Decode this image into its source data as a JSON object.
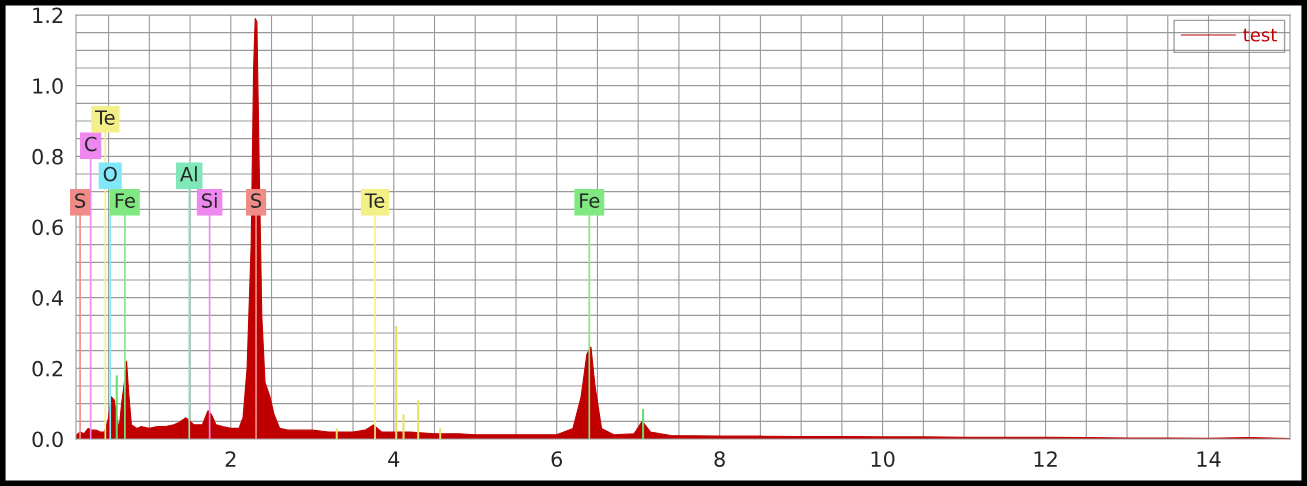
{
  "chart_data": {
    "type": "area",
    "series": [
      {
        "name": "test",
        "color": "#c00000",
        "x": [
          0.1,
          0.15,
          0.2,
          0.25,
          0.3,
          0.35,
          0.4,
          0.45,
          0.5,
          0.53,
          0.57,
          0.6,
          0.63,
          0.66,
          0.7,
          0.72,
          0.75,
          0.78,
          0.85,
          0.9,
          1.0,
          1.1,
          1.2,
          1.3,
          1.35,
          1.45,
          1.5,
          1.55,
          1.65,
          1.72,
          1.76,
          1.82,
          1.9,
          2.0,
          2.1,
          2.15,
          2.2,
          2.25,
          2.28,
          2.3,
          2.32,
          2.35,
          2.38,
          2.42,
          2.48,
          2.53,
          2.6,
          2.7,
          2.8,
          3.0,
          3.2,
          3.5,
          3.65,
          3.75,
          3.85,
          4.0,
          4.2,
          4.5,
          4.8,
          5.0,
          5.5,
          6.0,
          6.2,
          6.3,
          6.37,
          6.42,
          6.47,
          6.55,
          6.7,
          6.95,
          7.05,
          7.15,
          7.4,
          8.0,
          8.5,
          9.0,
          9.5,
          10.0,
          10.5,
          11.0,
          11.5,
          12.0,
          12.5,
          13.0,
          13.5,
          14.0,
          14.5,
          15.0
        ],
        "values": [
          0.01,
          0.02,
          0.015,
          0.03,
          0.025,
          0.025,
          0.02,
          0.02,
          0.06,
          0.12,
          0.11,
          0.06,
          0.03,
          0.1,
          0.17,
          0.22,
          0.12,
          0.04,
          0.03,
          0.035,
          0.03,
          0.035,
          0.035,
          0.04,
          0.045,
          0.06,
          0.05,
          0.04,
          0.04,
          0.08,
          0.07,
          0.04,
          0.035,
          0.03,
          0.03,
          0.06,
          0.2,
          0.55,
          1.05,
          1.19,
          1.18,
          0.75,
          0.35,
          0.16,
          0.12,
          0.07,
          0.03,
          0.025,
          0.025,
          0.025,
          0.02,
          0.02,
          0.025,
          0.04,
          0.02,
          0.02,
          0.02,
          0.015,
          0.015,
          0.012,
          0.012,
          0.012,
          0.03,
          0.12,
          0.24,
          0.26,
          0.15,
          0.03,
          0.012,
          0.015,
          0.05,
          0.02,
          0.01,
          0.008,
          0.008,
          0.007,
          0.007,
          0.006,
          0.006,
          0.005,
          0.005,
          0.005,
          0.004,
          0.003,
          0.003,
          0.002,
          0.004,
          0.001
        ]
      },
      {
        "type": "bar",
        "x": [
          0.6,
          3.3,
          4.03,
          4.12,
          4.3,
          4.57,
          7.06
        ],
        "values": [
          0.18,
          0.03,
          0.32,
          0.07,
          0.11,
          0.03,
          0.085
        ],
        "colors": [
          "#66dd66",
          "#e8e060",
          "#e8e060",
          "#e8e060",
          "#e8e060",
          "#e8e060",
          "#66dd66"
        ]
      }
    ],
    "xlim": [
      0.1,
      15
    ],
    "xticks": [
      {
        "value": 0.5,
        "label": null
      },
      {
        "value": 1,
        "label": null
      },
      {
        "value": 1.5,
        "label": null
      },
      2,
      {
        "value": 2.5,
        "label": null
      },
      {
        "value": 3,
        "label": null
      },
      {
        "value": 3.5,
        "label": null
      },
      4,
      {
        "value": 4.5,
        "label": null
      },
      {
        "value": 5,
        "label": null
      },
      {
        "value": 5.5,
        "label": null
      },
      6,
      {
        "value": 6.5,
        "label": null
      },
      {
        "value": 7,
        "label": null
      },
      {
        "value": 7.5,
        "label": null
      },
      8,
      {
        "value": 8.5,
        "label": null
      },
      {
        "value": 9,
        "label": null
      },
      {
        "value": 9.5,
        "label": null
      },
      10,
      {
        "value": 10.5,
        "label": null
      },
      {
        "value": 11,
        "label": null
      },
      {
        "value": 11.5,
        "label": null
      },
      12,
      {
        "value": 12.5,
        "label": null
      },
      {
        "value": 13,
        "label": null
      },
      {
        "value": 13.5,
        "label": null
      },
      14,
      {
        "value": 14.5,
        "label": null
      }
    ],
    "ylim": [
      0,
      1.2
    ],
    "yticks": [
      {
        "value": 0,
        "label": "0.0"
      },
      {
        "value": 0.05,
        "label": null
      },
      {
        "value": 0.1,
        "label": null
      },
      {
        "value": 0.15,
        "label": null
      },
      {
        "value": 0.2,
        "label": "0.2"
      },
      {
        "value": 0.25,
        "label": null
      },
      {
        "value": 0.3,
        "label": null
      },
      {
        "value": 0.35,
        "label": null
      },
      {
        "value": 0.4,
        "label": "0.4"
      },
      {
        "value": 0.45,
        "label": null
      },
      {
        "value": 0.5,
        "label": null
      },
      {
        "value": 0.55,
        "label": null
      },
      {
        "value": 0.6,
        "label": "0.6"
      },
      {
        "value": 0.65,
        "label": null
      },
      {
        "value": 0.7,
        "label": null
      },
      {
        "value": 0.75,
        "label": null
      },
      {
        "value": 0.8,
        "label": "0.8"
      },
      {
        "value": 0.85,
        "label": null
      },
      {
        "value": 0.9,
        "label": null
      },
      {
        "value": 0.95,
        "label": null
      },
      {
        "value": 1.0,
        "label": "1.0"
      },
      {
        "value": 1.05,
        "label": null
      },
      {
        "value": 1.1,
        "label": null
      },
      {
        "value": 1.15,
        "label": null
      },
      {
        "value": 1.2,
        "label": "1.2"
      }
    ],
    "ref_lines": [
      {
        "axis": "x",
        "value": 0.15,
        "label": "S",
        "color": "#f08c88"
      },
      {
        "axis": "x",
        "value": 0.7,
        "label": "Fe",
        "color": "#80e880"
      },
      {
        "axis": "x",
        "value": 0.52,
        "label": "O",
        "color": "#80e8f8"
      },
      {
        "axis": "x",
        "value": 0.28,
        "label": "C",
        "color": "#ee88ee"
      },
      {
        "axis": "x",
        "value": 0.46,
        "label": "Te",
        "color": "#f4f088"
      },
      {
        "axis": "x",
        "value": 1.74,
        "label": "Si",
        "color": "#ee88ee"
      },
      {
        "axis": "x",
        "value": 1.49,
        "label": "Al",
        "color": "#80e8b8"
      },
      {
        "axis": "x",
        "value": 2.31,
        "label": "S",
        "color": "#f08c88"
      },
      {
        "axis": "x",
        "value": 3.77,
        "label": "Te",
        "color": "#f4f088"
      },
      {
        "axis": "x",
        "value": 6.4,
        "label": "Fe",
        "color": "#80e880"
      }
    ],
    "grid": true,
    "legend": "top right"
  }
}
